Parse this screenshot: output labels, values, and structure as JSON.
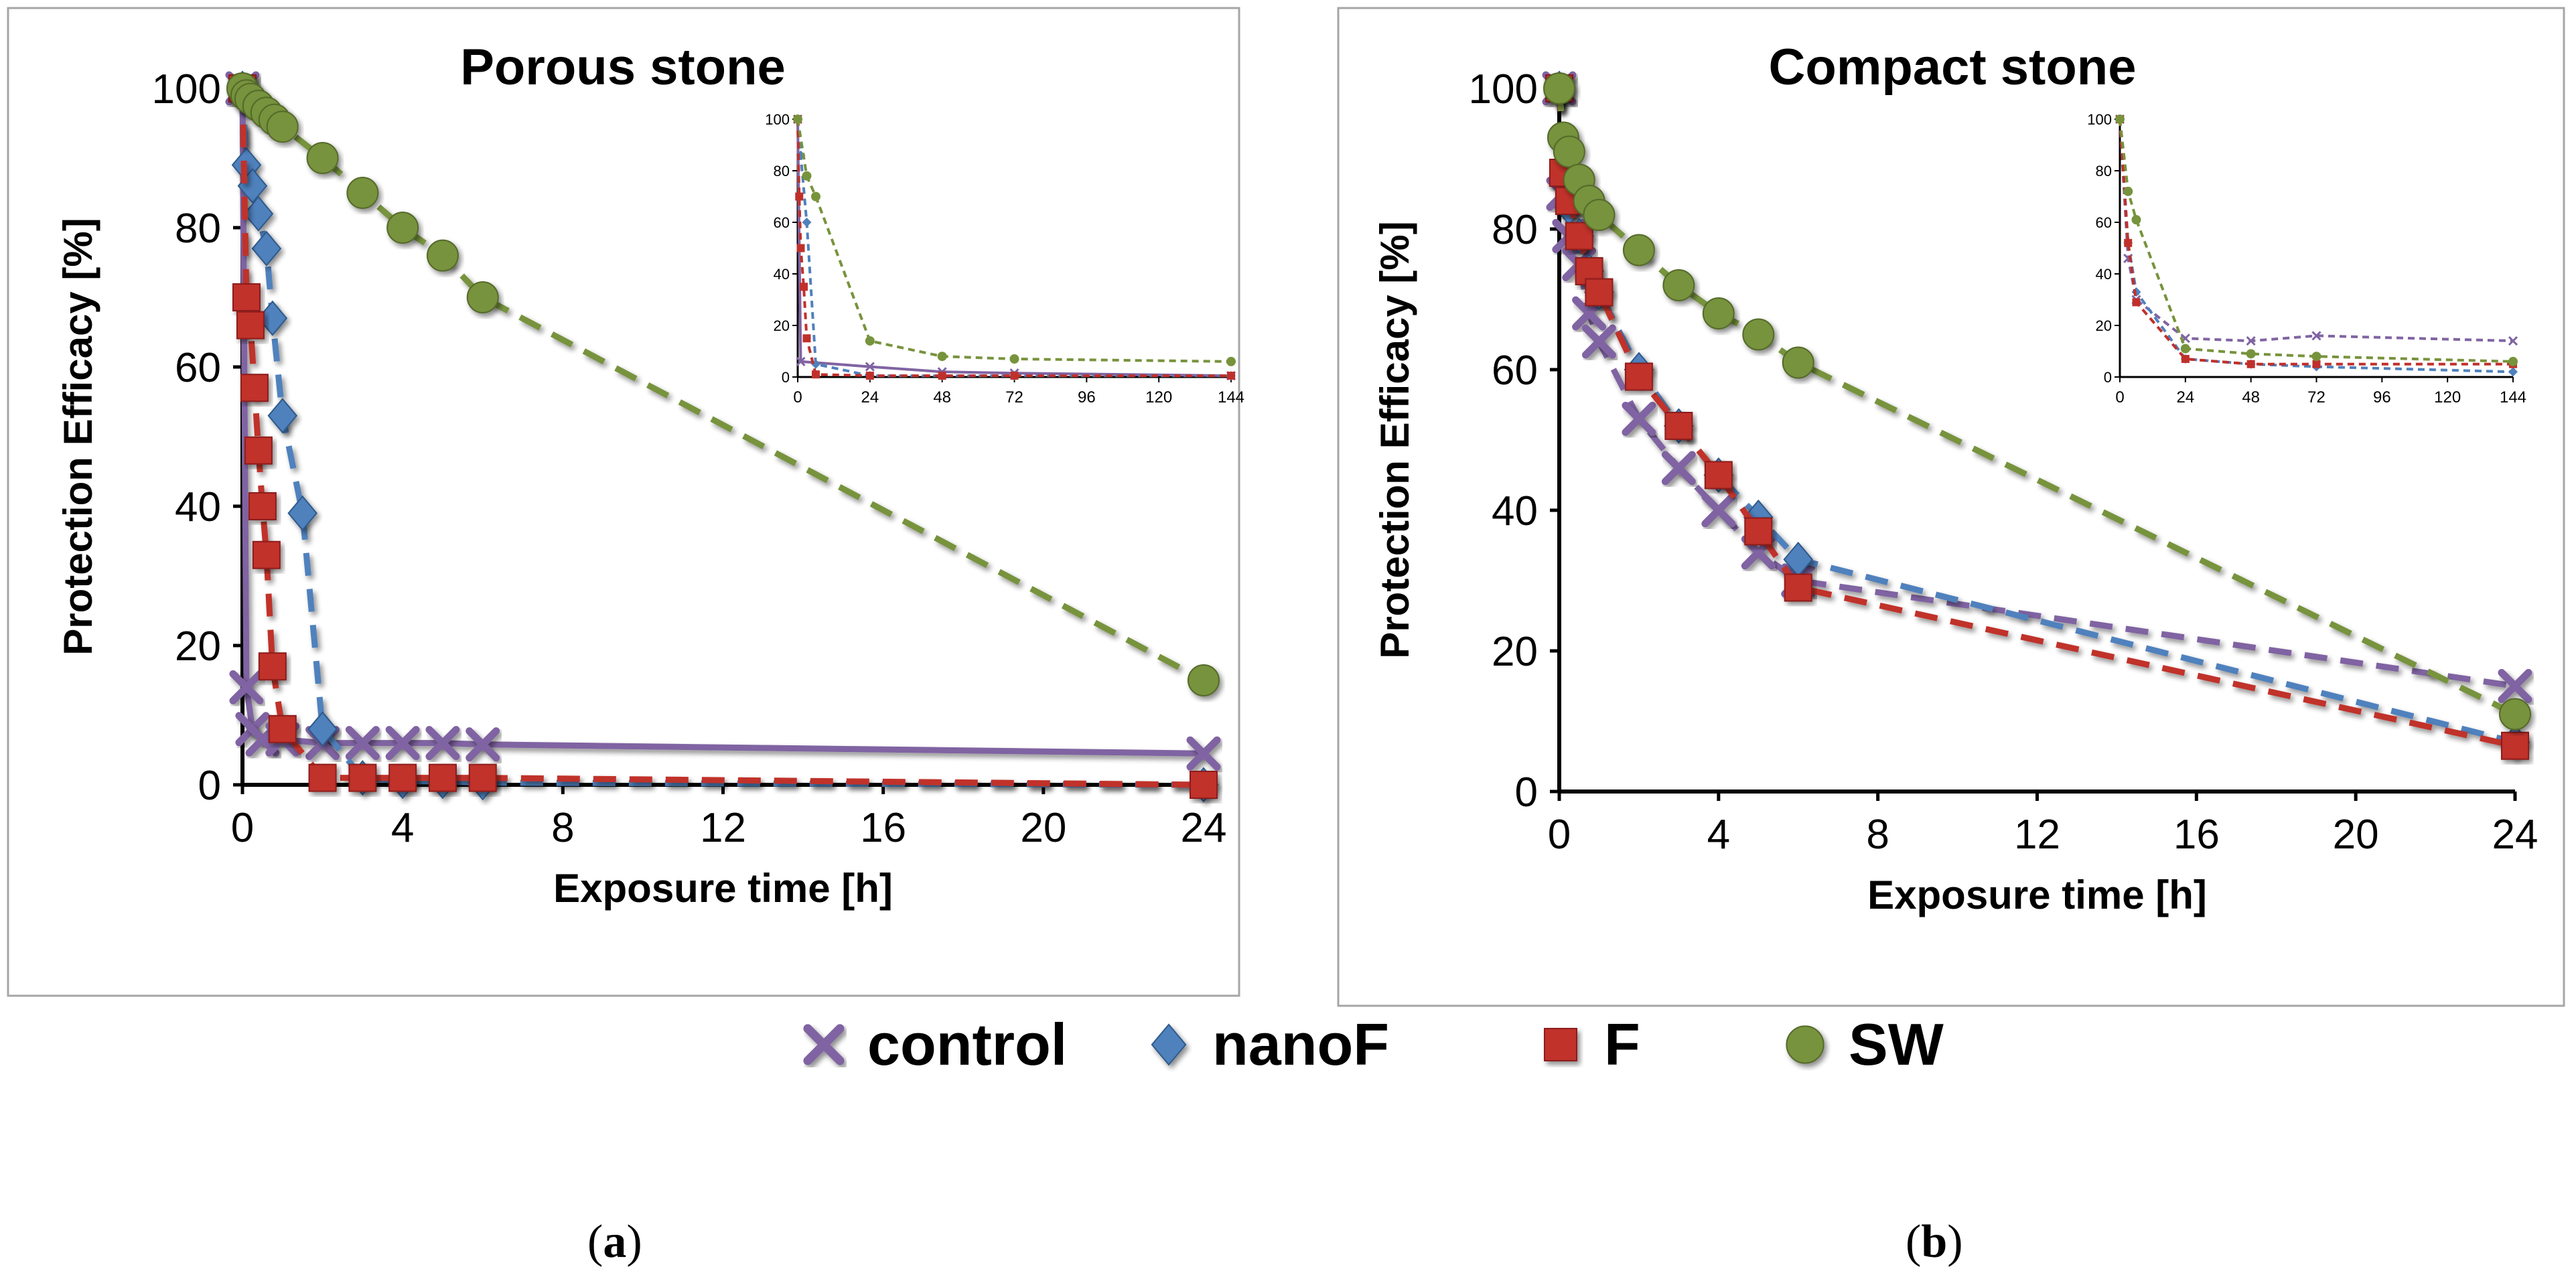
{
  "figure": {
    "legend": [
      {
        "name": "control",
        "color": "#8064A2",
        "marker": "x"
      },
      {
        "name": "nanoF",
        "color": "#4F81BD",
        "marker": "diamond"
      },
      {
        "name": "F",
        "color": "#C0302B",
        "marker": "square"
      },
      {
        "name": "SW",
        "color": "#77933C",
        "marker": "circle"
      }
    ],
    "panel_labels": {
      "a": {
        "open": "(",
        "letter": "a",
        "close": ")"
      },
      "b": {
        "open": "(",
        "letter": "b",
        "close": ")"
      }
    }
  },
  "chart_data": [
    {
      "id": "a",
      "type": "line",
      "title": "Porous stone",
      "xlabel": "Exposure time [h]",
      "ylabel": "Protection Efficacy  [%]",
      "xlim": [
        0,
        24
      ],
      "ylim": [
        0,
        100
      ],
      "xticks": [
        0,
        4,
        8,
        12,
        16,
        20,
        24
      ],
      "yticks": [
        0,
        20,
        40,
        60,
        80,
        100
      ],
      "series": [
        {
          "name": "control",
          "color": "#8064A2",
          "marker": "x",
          "dash": false,
          "x": [
            0,
            0.1,
            0.25,
            0.5,
            1,
            2,
            3,
            4,
            5,
            6,
            24
          ],
          "y": [
            100,
            14,
            8,
            6.5,
            6.5,
            6,
            6,
            6,
            6,
            5.8,
            4.5
          ]
        },
        {
          "name": "nanoF",
          "color": "#4F81BD",
          "marker": "diamond",
          "dash": true,
          "x": [
            0,
            0.1,
            0.25,
            0.4,
            0.6,
            0.75,
            1,
            1.5,
            2,
            3,
            4,
            5,
            6,
            24
          ],
          "y": [
            100,
            89,
            86,
            82,
            77,
            67,
            53,
            39,
            8,
            1,
            0.5,
            0.5,
            0.3,
            0
          ]
        },
        {
          "name": "F",
          "color": "#C0302B",
          "marker": "square",
          "dash": true,
          "x": [
            0,
            0.1,
            0.2,
            0.3,
            0.4,
            0.5,
            0.6,
            0.75,
            1,
            2,
            3,
            4,
            5,
            6,
            24
          ],
          "y": [
            100,
            70,
            66,
            57,
            48,
            40,
            33,
            17,
            8,
            1,
            1,
            1,
            1,
            1,
            0
          ]
        },
        {
          "name": "SW",
          "color": "#77933C",
          "marker": "circle",
          "dash": true,
          "x": [
            0,
            0.1,
            0.2,
            0.4,
            0.6,
            0.8,
            1,
            2,
            3,
            4,
            5,
            6,
            24
          ],
          "y": [
            100,
            99,
            98.5,
            97.5,
            96.5,
            95.5,
            94.5,
            90,
            85,
            80,
            76,
            70,
            15
          ]
        }
      ],
      "inset": {
        "xlim": [
          0,
          144
        ],
        "ylim": [
          0,
          100
        ],
        "xticks": [
          0,
          24,
          48,
          72,
          96,
          120,
          144
        ],
        "yticks": [
          0,
          20,
          40,
          60,
          80,
          100
        ],
        "series": [
          {
            "name": "control",
            "color": "#8064A2",
            "dash": false,
            "x": [
              0,
              1,
              24,
              48,
              72,
              144
            ],
            "y": [
              100,
              6,
              4,
              2,
              1.5,
              0.5
            ]
          },
          {
            "name": "nanoF",
            "color": "#4F81BD",
            "dash": true,
            "x": [
              0,
              1,
              3,
              6,
              24,
              48,
              72,
              144
            ],
            "y": [
              100,
              86,
              60,
              5,
              0.5,
              0.5,
              0.5,
              0.5
            ]
          },
          {
            "name": "F",
            "color": "#C0302B",
            "dash": true,
            "x": [
              0,
              0.5,
              1,
              2,
              3,
              6,
              24,
              48,
              72,
              144
            ],
            "y": [
              100,
              70,
              50,
              35,
              15,
              1,
              0.5,
              0.5,
              0.5,
              0.5
            ]
          },
          {
            "name": "SW",
            "color": "#77933C",
            "dash": true,
            "x": [
              0,
              3,
              6,
              24,
              48,
              72,
              144
            ],
            "y": [
              100,
              78,
              70,
              14,
              8,
              7,
              6
            ]
          }
        ]
      }
    },
    {
      "id": "b",
      "type": "line",
      "title": "Compact stone",
      "xlabel": "Exposure time [h]",
      "ylabel": "Protection Efficacy  [%]",
      "xlim": [
        0,
        24
      ],
      "ylim": [
        0,
        100
      ],
      "xticks": [
        0,
        4,
        8,
        12,
        16,
        20,
        24
      ],
      "yticks": [
        0,
        20,
        40,
        60,
        80,
        100
      ],
      "series": [
        {
          "name": "control",
          "color": "#8064A2",
          "marker": "x",
          "dash": true,
          "x": [
            0,
            0.1,
            0.25,
            0.5,
            0.75,
            1,
            2,
            3,
            4,
            5,
            6,
            24
          ],
          "y": [
            100,
            85,
            79,
            75,
            68,
            64,
            53,
            46,
            40,
            34,
            30,
            15
          ]
        },
        {
          "name": "nanoF",
          "color": "#4F81BD",
          "marker": "diamond",
          "dash": true,
          "x": [
            0,
            0.1,
            0.25,
            0.5,
            0.75,
            1,
            2,
            3,
            4,
            5,
            6,
            24
          ],
          "y": [
            100,
            87,
            83,
            79,
            74,
            71,
            60,
            52,
            45,
            39,
            33,
            7
          ]
        },
        {
          "name": "F",
          "color": "#C0302B",
          "marker": "square",
          "dash": true,
          "x": [
            0,
            0.1,
            0.25,
            0.5,
            0.75,
            1,
            2,
            3,
            4,
            5,
            6,
            24
          ],
          "y": [
            100,
            88,
            84,
            79,
            74,
            71,
            59,
            52,
            45,
            37,
            29,
            6.5
          ]
        },
        {
          "name": "SW",
          "color": "#77933C",
          "marker": "circle",
          "dash": true,
          "x": [
            0,
            0.1,
            0.25,
            0.5,
            0.75,
            1,
            2,
            3,
            4,
            5,
            6,
            24
          ],
          "y": [
            100,
            93,
            91,
            87,
            84,
            82,
            77,
            72,
            68,
            65,
            61,
            11
          ]
        }
      ],
      "inset": {
        "xlim": [
          0,
          144
        ],
        "ylim": [
          0,
          100
        ],
        "xticks": [
          0,
          24,
          48,
          72,
          96,
          120,
          144
        ],
        "yticks": [
          0,
          20,
          40,
          60,
          80,
          100
        ],
        "series": [
          {
            "name": "control",
            "color": "#8064A2",
            "dash": true,
            "x": [
              0,
              3,
              6,
              24,
              48,
              72,
              144
            ],
            "y": [
              100,
              46,
              30,
              15,
              14,
              16,
              14
            ]
          },
          {
            "name": "nanoF",
            "color": "#4F81BD",
            "dash": true,
            "x": [
              0,
              3,
              6,
              24,
              48,
              72,
              144
            ],
            "y": [
              100,
              52,
              33,
              7,
              5,
              4,
              2
            ]
          },
          {
            "name": "F",
            "color": "#C0302B",
            "dash": true,
            "x": [
              0,
              3,
              6,
              24,
              48,
              72,
              144
            ],
            "y": [
              100,
              52,
              29,
              7,
              5,
              5,
              5
            ]
          },
          {
            "name": "SW",
            "color": "#77933C",
            "dash": true,
            "x": [
              0,
              3,
              6,
              24,
              48,
              72,
              144
            ],
            "y": [
              100,
              72,
              61,
              11,
              9,
              8,
              6
            ]
          }
        ]
      }
    }
  ]
}
